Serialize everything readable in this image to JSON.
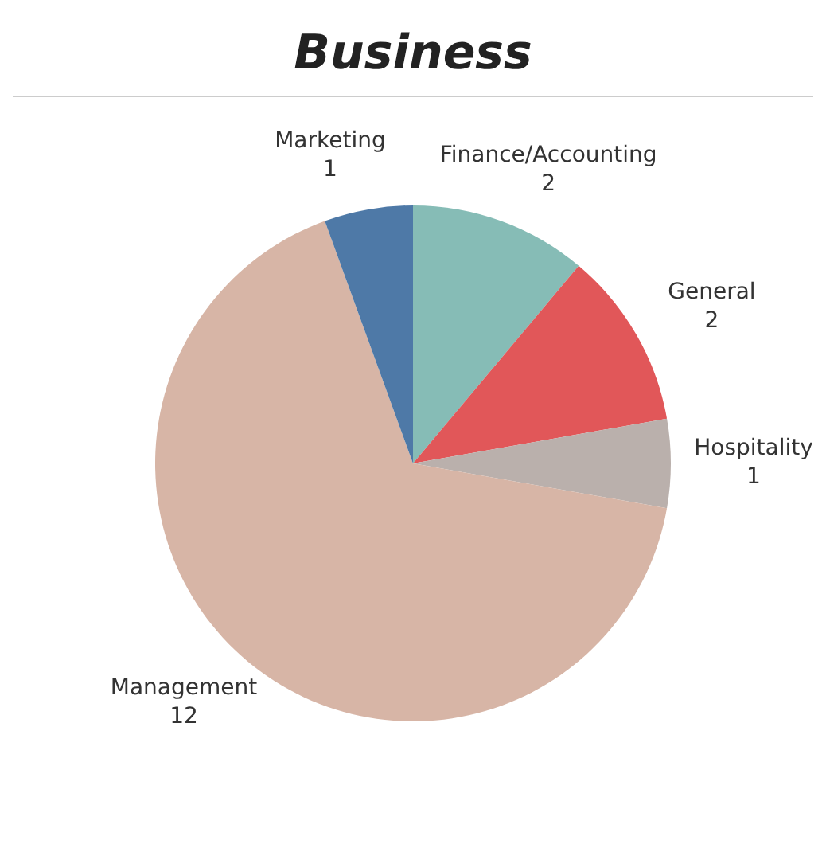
{
  "chart_data": {
    "type": "pie",
    "title": "Business",
    "categories": [
      "Finance/Accounting",
      "General",
      "Hospitality",
      "Management",
      "Marketing"
    ],
    "values": [
      2,
      2,
      1,
      12,
      1
    ],
    "colors": [
      "#86bcb6",
      "#e15759",
      "#bab0ac",
      "#d7b5a6",
      "#4e79a7"
    ],
    "data_labels": true,
    "legend": false
  }
}
